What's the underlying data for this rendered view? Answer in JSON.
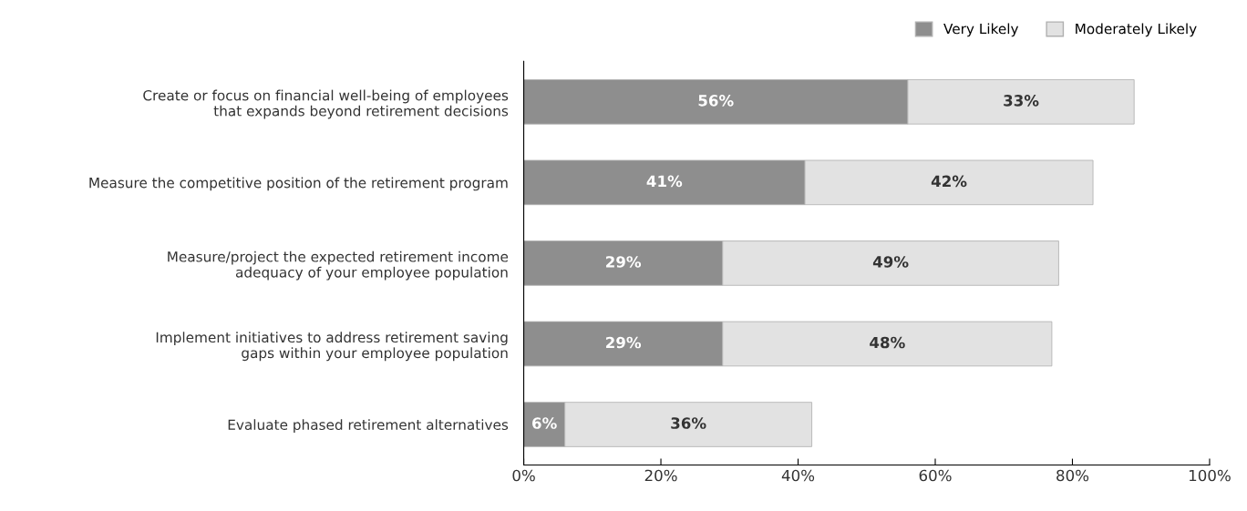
{
  "chart_data": {
    "type": "bar",
    "orientation": "horizontal",
    "stacked": true,
    "categories": [
      "Create or focus on financial well-being of employees\nthat expands beyond retirement decisions",
      "Measure the competitive position of the retirement program",
      "Measure/project the expected retirement income\nadequacy of your employee population",
      "Implement initiatives to address retirement saving\ngaps within your employee population",
      "Evaluate phased retirement alternatives"
    ],
    "series": [
      {
        "name": "Very Likely",
        "color": "#8e8e8e",
        "values": [
          56,
          41,
          29,
          29,
          6
        ],
        "value_labels": [
          "56%",
          "41%",
          "29%",
          "29%",
          "6%"
        ]
      },
      {
        "name": "Moderately Likely",
        "color": "#e2e2e2",
        "values": [
          33,
          42,
          49,
          48,
          36
        ],
        "value_labels": [
          "33%",
          "42%",
          "49%",
          "48%",
          "36%"
        ]
      }
    ],
    "xlim": [
      0,
      100
    ],
    "xticks": [
      {
        "value": 0,
        "label": "0%"
      },
      {
        "value": 20,
        "label": "20%"
      },
      {
        "value": 40,
        "label": "40%"
      },
      {
        "value": 60,
        "label": "60%"
      },
      {
        "value": 80,
        "label": "80%"
      },
      {
        "value": 100,
        "label": "100%"
      }
    ],
    "grid": false,
    "legend": "top right"
  }
}
